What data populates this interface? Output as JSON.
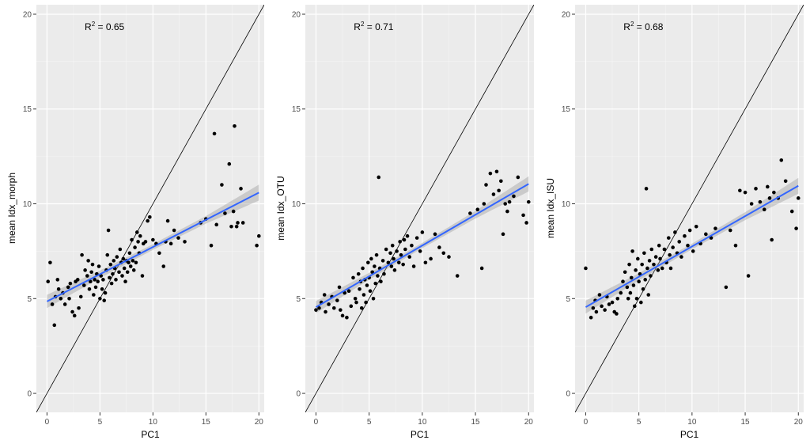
{
  "chart_data": [
    {
      "type": "scatter",
      "xlabel": "PC1",
      "ylabel": "mean Idx_morph",
      "xlim": [
        -1,
        20.5
      ],
      "ylim": [
        -1,
        20.5
      ],
      "xticks": [
        0,
        5,
        10,
        15,
        20
      ],
      "yticks": [
        0,
        5,
        10,
        15,
        20
      ],
      "annotation": {
        "base": "R",
        "superscript": "2",
        "rest": " = 0.65"
      },
      "identity_line": true,
      "fit": {
        "intercept": 4.85,
        "slope": 0.287,
        "ci_halfwidth": [
          0.35,
          0.2,
          0.15,
          0.2,
          0.42
        ]
      },
      "points": [
        [
          0.1,
          5.9
        ],
        [
          0.3,
          6.9
        ],
        [
          0.5,
          4.7
        ],
        [
          0.7,
          3.6
        ],
        [
          0.8,
          5.1
        ],
        [
          1.0,
          6.0
        ],
        [
          1.1,
          5.5
        ],
        [
          1.3,
          5.0
        ],
        [
          1.5,
          5.3
        ],
        [
          1.7,
          4.7
        ],
        [
          2.0,
          5.6
        ],
        [
          2.1,
          5.0
        ],
        [
          2.2,
          5.8
        ],
        [
          2.4,
          4.3
        ],
        [
          2.6,
          4.1
        ],
        [
          2.7,
          5.9
        ],
        [
          2.9,
          6.0
        ],
        [
          3.0,
          4.5
        ],
        [
          3.2,
          5.1
        ],
        [
          3.3,
          7.3
        ],
        [
          3.5,
          5.7
        ],
        [
          3.6,
          6.5
        ],
        [
          3.8,
          6.2
        ],
        [
          3.9,
          7.0
        ],
        [
          4.0,
          5.5
        ],
        [
          4.1,
          5.9
        ],
        [
          4.2,
          6.4
        ],
        [
          4.3,
          6.8
        ],
        [
          4.4,
          5.2
        ],
        [
          4.5,
          6.0
        ],
        [
          4.6,
          5.6
        ],
        [
          4.7,
          6.3
        ],
        [
          4.8,
          5.9
        ],
        [
          4.9,
          6.7
        ],
        [
          5.0,
          5.0
        ],
        [
          5.1,
          6.2
        ],
        [
          5.2,
          5.5
        ],
        [
          5.3,
          6.0
        ],
        [
          5.4,
          4.9
        ],
        [
          5.5,
          5.3
        ],
        [
          5.6,
          6.5
        ],
        [
          5.7,
          7.3
        ],
        [
          5.8,
          8.6
        ],
        [
          5.9,
          6.1
        ],
        [
          6.0,
          6.8
        ],
        [
          6.1,
          5.8
        ],
        [
          6.2,
          6.3
        ],
        [
          6.3,
          7.0
        ],
        [
          6.4,
          6.6
        ],
        [
          6.5,
          6.0
        ],
        [
          6.6,
          7.2
        ],
        [
          6.8,
          6.4
        ],
        [
          6.9,
          7.6
        ],
        [
          7.0,
          6.9
        ],
        [
          7.1,
          6.2
        ],
        [
          7.2,
          7.1
        ],
        [
          7.3,
          6.6
        ],
        [
          7.4,
          5.9
        ],
        [
          7.5,
          7.0
        ],
        [
          7.6,
          6.4
        ],
        [
          7.7,
          6.9
        ],
        [
          7.8,
          7.4
        ],
        [
          7.9,
          6.7
        ],
        [
          8.0,
          8.1
        ],
        [
          8.1,
          7.0
        ],
        [
          8.2,
          6.5
        ],
        [
          8.3,
          7.7
        ],
        [
          8.4,
          6.9
        ],
        [
          8.5,
          8.5
        ],
        [
          8.6,
          8.0
        ],
        [
          8.7,
          7.4
        ],
        [
          8.8,
          8.3
        ],
        [
          9.0,
          6.2
        ],
        [
          9.1,
          7.9
        ],
        [
          9.3,
          8.0
        ],
        [
          9.5,
          9.1
        ],
        [
          9.7,
          9.3
        ],
        [
          10.0,
          8.1
        ],
        [
          10.3,
          7.9
        ],
        [
          10.6,
          7.4
        ],
        [
          11.0,
          6.7
        ],
        [
          11.2,
          8.0
        ],
        [
          11.4,
          9.1
        ],
        [
          11.7,
          7.9
        ],
        [
          12.0,
          8.6
        ],
        [
          12.4,
          8.2
        ],
        [
          13.0,
          8.0
        ],
        [
          14.5,
          9.0
        ],
        [
          15.0,
          9.2
        ],
        [
          15.5,
          7.8
        ],
        [
          15.8,
          13.7
        ],
        [
          16.0,
          8.9
        ],
        [
          16.5,
          11.0
        ],
        [
          16.8,
          9.5
        ],
        [
          17.2,
          12.1
        ],
        [
          17.4,
          8.8
        ],
        [
          17.6,
          9.6
        ],
        [
          17.7,
          14.1
        ],
        [
          17.9,
          8.8
        ],
        [
          18.0,
          9.0
        ],
        [
          18.3,
          10.8
        ],
        [
          18.5,
          9.0
        ],
        [
          19.8,
          7.8
        ],
        [
          20.0,
          8.3
        ]
      ]
    },
    {
      "type": "scatter",
      "xlabel": "PC1",
      "ylabel": "mean Idx_OTU",
      "xlim": [
        -1,
        20.5
      ],
      "ylim": [
        -1,
        20.5
      ],
      "xticks": [
        0,
        5,
        10,
        15,
        20
      ],
      "yticks": [
        0,
        5,
        10,
        15,
        20
      ],
      "annotation": {
        "base": "R",
        "superscript": "2",
        "rest": " = 0.71"
      },
      "identity_line": true,
      "fit": {
        "intercept": 4.55,
        "slope": 0.325,
        "ci_halfwidth": [
          0.32,
          0.18,
          0.14,
          0.2,
          0.4
        ]
      },
      "points": [
        [
          0.0,
          4.4
        ],
        [
          0.3,
          4.5
        ],
        [
          0.5,
          4.8
        ],
        [
          0.8,
          5.2
        ],
        [
          0.9,
          4.3
        ],
        [
          1.2,
          4.7
        ],
        [
          1.5,
          5.1
        ],
        [
          1.7,
          4.5
        ],
        [
          2.0,
          4.9
        ],
        [
          2.2,
          5.6
        ],
        [
          2.3,
          4.4
        ],
        [
          2.5,
          4.1
        ],
        [
          2.7,
          5.3
        ],
        [
          2.9,
          4.0
        ],
        [
          3.1,
          5.4
        ],
        [
          3.3,
          4.6
        ],
        [
          3.5,
          6.1
        ],
        [
          3.7,
          5.0
        ],
        [
          3.8,
          4.8
        ],
        [
          4.0,
          6.3
        ],
        [
          4.1,
          5.5
        ],
        [
          4.2,
          5.9
        ],
        [
          4.3,
          4.5
        ],
        [
          4.4,
          6.6
        ],
        [
          4.5,
          5.2
        ],
        [
          4.6,
          6.0
        ],
        [
          4.7,
          4.8
        ],
        [
          4.8,
          5.7
        ],
        [
          4.9,
          6.9
        ],
        [
          5.0,
          6.1
        ],
        [
          5.1,
          5.4
        ],
        [
          5.2,
          7.1
        ],
        [
          5.3,
          6.4
        ],
        [
          5.4,
          5.0
        ],
        [
          5.5,
          6.7
        ],
        [
          5.6,
          5.8
        ],
        [
          5.7,
          7.3
        ],
        [
          5.8,
          6.2
        ],
        [
          5.9,
          11.4
        ],
        [
          6.0,
          6.6
        ],
        [
          6.1,
          5.9
        ],
        [
          6.3,
          7.0
        ],
        [
          6.4,
          6.3
        ],
        [
          6.6,
          7.6
        ],
        [
          6.8,
          6.9
        ],
        [
          7.0,
          7.4
        ],
        [
          7.1,
          6.7
        ],
        [
          7.2,
          7.8
        ],
        [
          7.3,
          7.1
        ],
        [
          7.4,
          6.5
        ],
        [
          7.6,
          7.5
        ],
        [
          7.8,
          6.9
        ],
        [
          7.9,
          8.0
        ],
        [
          8.0,
          7.3
        ],
        [
          8.2,
          6.8
        ],
        [
          8.3,
          8.1
        ],
        [
          8.4,
          7.6
        ],
        [
          8.6,
          8.3
        ],
        [
          8.8,
          7.2
        ],
        [
          9.0,
          7.8
        ],
        [
          9.2,
          6.7
        ],
        [
          9.5,
          8.2
        ],
        [
          9.8,
          7.5
        ],
        [
          10.0,
          8.5
        ],
        [
          10.3,
          6.9
        ],
        [
          10.8,
          7.1
        ],
        [
          11.2,
          8.4
        ],
        [
          11.6,
          7.7
        ],
        [
          12.0,
          7.4
        ],
        [
          12.5,
          7.2
        ],
        [
          13.3,
          6.2
        ],
        [
          14.5,
          9.5
        ],
        [
          15.2,
          9.7
        ],
        [
          15.6,
          6.6
        ],
        [
          15.8,
          10.0
        ],
        [
          16.0,
          11.0
        ],
        [
          16.4,
          11.6
        ],
        [
          16.7,
          10.5
        ],
        [
          17.0,
          11.7
        ],
        [
          17.2,
          10.7
        ],
        [
          17.4,
          11.2
        ],
        [
          17.6,
          8.4
        ],
        [
          17.8,
          10.0
        ],
        [
          18.0,
          9.6
        ],
        [
          18.2,
          10.1
        ],
        [
          18.6,
          10.4
        ],
        [
          19.0,
          11.4
        ],
        [
          19.5,
          9.4
        ],
        [
          19.8,
          9.0
        ],
        [
          20.0,
          10.1
        ]
      ]
    },
    {
      "type": "scatter",
      "xlabel": "PC1",
      "ylabel": "mean Idx_ISU",
      "xlim": [
        -1,
        20.5
      ],
      "ylim": [
        -1,
        20.5
      ],
      "xticks": [
        0,
        5,
        10,
        15,
        20
      ],
      "yticks": [
        0,
        5,
        10,
        15,
        20
      ],
      "annotation": {
        "base": "R",
        "superscript": "2",
        "rest": " = 0.68"
      },
      "identity_line": true,
      "fit": {
        "intercept": 4.55,
        "slope": 0.32,
        "ci_halfwidth": [
          0.34,
          0.19,
          0.15,
          0.21,
          0.42
        ]
      },
      "points": [
        [
          0.0,
          6.6
        ],
        [
          0.5,
          4.0
        ],
        [
          0.7,
          4.5
        ],
        [
          0.9,
          4.9
        ],
        [
          1.0,
          4.3
        ],
        [
          1.3,
          5.2
        ],
        [
          1.5,
          4.6
        ],
        [
          1.8,
          4.4
        ],
        [
          2.0,
          5.1
        ],
        [
          2.2,
          4.7
        ],
        [
          2.5,
          4.8
        ],
        [
          2.7,
          4.3
        ],
        [
          2.9,
          4.2
        ],
        [
          3.0,
          5.0
        ],
        [
          3.3,
          5.3
        ],
        [
          3.5,
          5.9
        ],
        [
          3.7,
          6.4
        ],
        [
          3.9,
          5.6
        ],
        [
          4.0,
          5.0
        ],
        [
          4.1,
          6.8
        ],
        [
          4.2,
          5.3
        ],
        [
          4.3,
          6.1
        ],
        [
          4.4,
          7.5
        ],
        [
          4.5,
          5.7
        ],
        [
          4.6,
          4.6
        ],
        [
          4.7,
          6.5
        ],
        [
          4.8,
          5.0
        ],
        [
          4.9,
          7.1
        ],
        [
          5.0,
          5.9
        ],
        [
          5.1,
          6.3
        ],
        [
          5.2,
          4.8
        ],
        [
          5.3,
          6.8
        ],
        [
          5.4,
          5.5
        ],
        [
          5.5,
          7.4
        ],
        [
          5.6,
          6.0
        ],
        [
          5.7,
          10.8
        ],
        [
          5.8,
          6.6
        ],
        [
          5.9,
          5.2
        ],
        [
          6.0,
          7.0
        ],
        [
          6.1,
          6.2
        ],
        [
          6.2,
          7.6
        ],
        [
          6.4,
          6.8
        ],
        [
          6.6,
          7.2
        ],
        [
          6.8,
          6.5
        ],
        [
          6.9,
          7.8
        ],
        [
          7.0,
          7.1
        ],
        [
          7.2,
          6.6
        ],
        [
          7.4,
          7.6
        ],
        [
          7.6,
          6.9
        ],
        [
          7.8,
          8.2
        ],
        [
          7.9,
          7.3
        ],
        [
          8.0,
          6.6
        ],
        [
          8.2,
          7.7
        ],
        [
          8.4,
          8.5
        ],
        [
          8.6,
          7.4
        ],
        [
          8.8,
          8.0
        ],
        [
          9.0,
          7.2
        ],
        [
          9.3,
          8.3
        ],
        [
          9.6,
          7.8
        ],
        [
          9.8,
          8.6
        ],
        [
          10.1,
          7.5
        ],
        [
          10.4,
          8.8
        ],
        [
          10.8,
          7.9
        ],
        [
          11.3,
          8.4
        ],
        [
          11.8,
          8.2
        ],
        [
          12.2,
          8.7
        ],
        [
          13.2,
          5.6
        ],
        [
          13.6,
          8.6
        ],
        [
          14.1,
          7.8
        ],
        [
          14.5,
          10.7
        ],
        [
          15.0,
          10.6
        ],
        [
          15.3,
          6.2
        ],
        [
          15.6,
          10.0
        ],
        [
          16.0,
          10.8
        ],
        [
          16.4,
          10.1
        ],
        [
          16.8,
          9.7
        ],
        [
          17.1,
          10.9
        ],
        [
          17.3,
          10.3
        ],
        [
          17.5,
          8.1
        ],
        [
          17.7,
          10.6
        ],
        [
          18.1,
          10.3
        ],
        [
          18.4,
          12.3
        ],
        [
          18.8,
          11.2
        ],
        [
          19.4,
          9.6
        ],
        [
          19.8,
          8.7
        ],
        [
          20.0,
          10.3
        ]
      ]
    }
  ]
}
